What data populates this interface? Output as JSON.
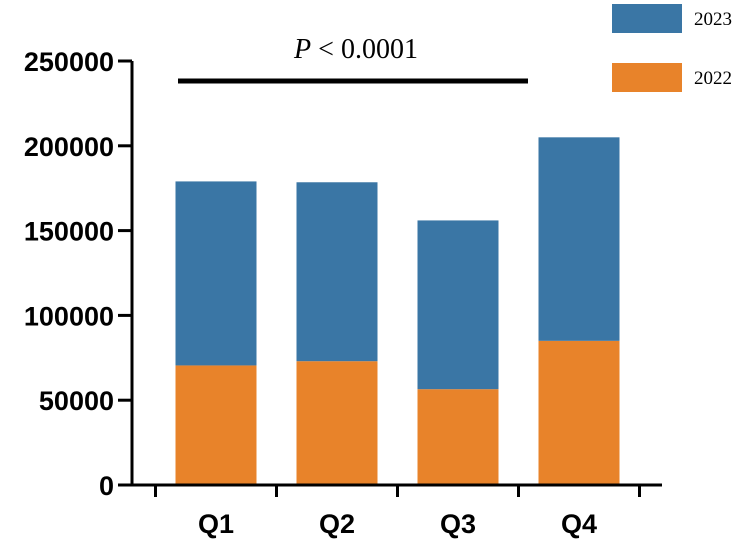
{
  "chart_data": {
    "type": "bar",
    "stacked": true,
    "categories": [
      "Q1",
      "Q2",
      "Q3",
      "Q4"
    ],
    "series": [
      {
        "name": "2022",
        "color": "#E8832A",
        "values": [
          70500,
          73000,
          56500,
          85000
        ]
      },
      {
        "name": "2023",
        "color": "#3A76A5",
        "values": [
          108500,
          105500,
          99500,
          120000
        ]
      }
    ],
    "ylim": [
      0,
      250000
    ],
    "yticks": [
      0,
      50000,
      100000,
      150000,
      200000,
      250000
    ],
    "ytick_labels": [
      "0",
      "50000",
      "100000",
      "150000",
      "200000",
      "250000"
    ],
    "grid": false,
    "legend_position": "top-right",
    "annotation": {
      "italic": "P",
      "text": " < 0.0001"
    }
  }
}
